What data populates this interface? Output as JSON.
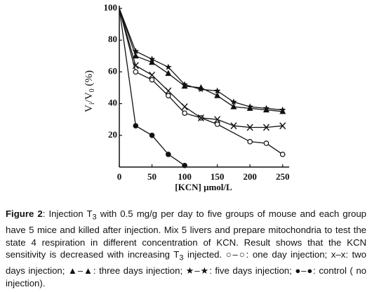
{
  "chart_data": {
    "type": "line",
    "xlabel": "[KCN] μmol/L",
    "ylabel_parts": [
      "V",
      "i",
      "/V",
      "0",
      " (%)"
    ],
    "xlim": [
      0,
      260
    ],
    "ylim": [
      0,
      100
    ],
    "xticks": [
      0,
      50,
      100,
      150,
      200,
      250
    ],
    "yticks": [
      20,
      40,
      60,
      80,
      100
    ],
    "series": [
      {
        "marker": "circle-open",
        "color": "#111111",
        "x": [
          0,
          25,
          50,
          75,
          100,
          125,
          150,
          200,
          225,
          250
        ],
        "values": [
          100,
          60,
          55,
          45,
          34,
          31,
          27,
          16,
          15,
          8
        ]
      },
      {
        "marker": "cross",
        "color": "#111111",
        "x": [
          0,
          25,
          50,
          75,
          100,
          125,
          150,
          175,
          200,
          225,
          250
        ],
        "values": [
          100,
          64,
          58,
          48,
          38,
          31,
          30,
          26,
          25,
          25,
          26
        ]
      },
      {
        "marker": "triangle",
        "color": "#111111",
        "x": [
          0,
          25,
          50,
          75,
          100,
          125,
          150,
          175,
          200,
          225,
          250
        ],
        "values": [
          100,
          70,
          66,
          59,
          51,
          50,
          45,
          38,
          37,
          36,
          35
        ]
      },
      {
        "marker": "star",
        "color": "#111111",
        "x": [
          0,
          25,
          50,
          75,
          100,
          125,
          150,
          175,
          200,
          225,
          250
        ],
        "values": [
          100,
          73,
          68,
          63,
          52,
          49,
          48,
          41,
          38,
          37,
          36
        ]
      },
      {
        "marker": "circle-filled",
        "color": "#111111",
        "x": [
          0,
          25,
          50,
          75,
          100
        ],
        "values": [
          100,
          26,
          20,
          8,
          1
        ]
      }
    ]
  },
  "caption": {
    "label": "Figure 2",
    "parts": [
      ": Injection T",
      "3",
      " with 0.5 mg/g per day to five groups of mouse and each group have 5 mice and killed after injection. Mix 5 livers and prepare mitochondria to test the state 4 respiration in different concentration of KCN. Result shows that the KCN sensitivity is decreased with increasing T",
      "3",
      " injected. ○–○: one day injection; x–x: two days injection; ▲–▲: three days injection; ★–★: five days injection; ●–●: control ( no injection)."
    ]
  }
}
